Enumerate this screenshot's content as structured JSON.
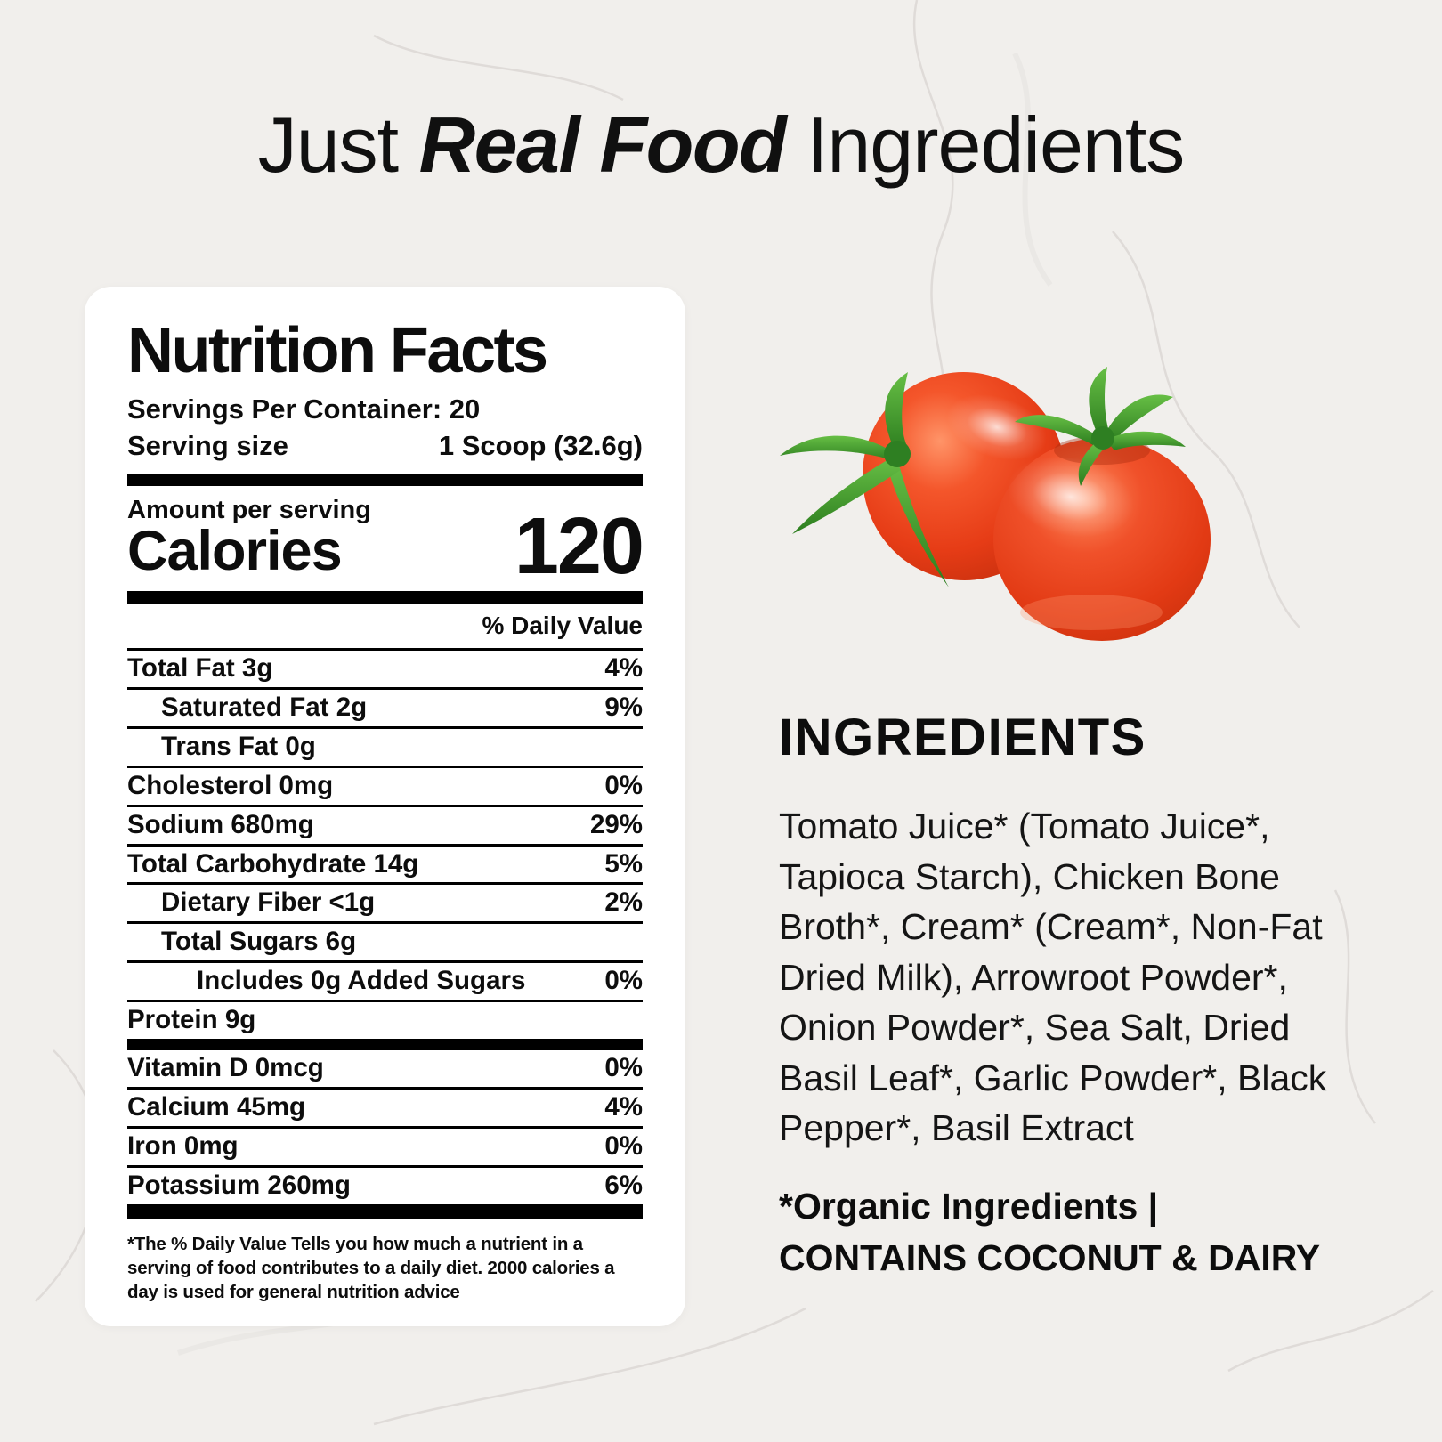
{
  "header": {
    "title_prefix": "Just ",
    "title_emphasis": "Real Food",
    "title_suffix": " Ingredients"
  },
  "nutrition_label": {
    "title": "Nutrition Facts",
    "servings_per_container": "Servings Per Container: 20",
    "serving_size_label": "Serving size",
    "serving_size_value": "1 Scoop (32.6g)",
    "amount_per_serving": "Amount per serving",
    "calories_label": "Calories",
    "calories_value": "120",
    "daily_value_header": "% Daily Value",
    "rows": [
      {
        "name": "Total Fat 3g",
        "pct": "4%",
        "indent": 0
      },
      {
        "name": "Saturated Fat 2g",
        "pct": "9%",
        "indent": 1
      },
      {
        "name": "Trans Fat 0g",
        "pct": "",
        "indent": 1
      },
      {
        "name": "Cholesterol 0mg",
        "pct": "0%",
        "indent": 0
      },
      {
        "name": "Sodium 680mg",
        "pct": "29%",
        "indent": 0
      },
      {
        "name": "Total Carbohydrate 14g",
        "pct": "5%",
        "indent": 0
      },
      {
        "name": "Dietary Fiber <1g",
        "pct": "2%",
        "indent": 1
      },
      {
        "name": "Total Sugars 6g",
        "pct": "",
        "indent": 1
      },
      {
        "name": "Includes 0g Added Sugars",
        "pct": "0%",
        "indent": 2
      },
      {
        "name": "Protein 9g",
        "pct": "",
        "indent": 0
      }
    ],
    "micronutrients": [
      {
        "name": "Vitamin D 0mcg",
        "pct": "0%"
      },
      {
        "name": "Calcium 45mg",
        "pct": "4%"
      },
      {
        "name": "Iron 0mg",
        "pct": "0%"
      },
      {
        "name": "Potassium 260mg",
        "pct": "6%"
      }
    ],
    "footnote": "*The % Daily Value Tells you how much a nutrient in a serving of food contributes to a daily diet. 2000 calories a day is used for general nutrition advice"
  },
  "ingredients": {
    "heading": "INGREDIENTS",
    "text": "Tomato Juice* (Tomato Juice*, Tapioca Starch), Chicken Bone Broth*, Cream* (Cream*, Non-Fat Dried Milk),  Arrowroot Powder*, Onion Powder*, Sea Salt, Dried Basil Leaf*, Garlic Powder*, Black Pepper*, Basil Extract",
    "organic_note": "*Organic Ingredients |",
    "allergen_note": "CONTAINS COCONUT & DAIRY"
  },
  "image": {
    "tomatoes_alt": "Two ripe red tomatoes with green stems"
  },
  "colors": {
    "background": "#f1efec",
    "card": "#ffffff",
    "text": "#0d0d0d",
    "tomato_red": "#e23b16",
    "stem_green": "#3e9430"
  }
}
